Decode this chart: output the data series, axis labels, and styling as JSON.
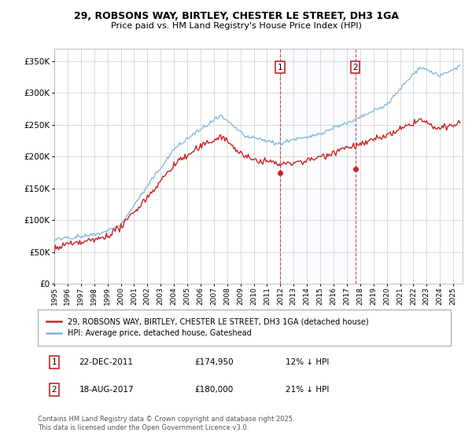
{
  "title": "29, ROBSONS WAY, BIRTLEY, CHESTER LE STREET, DH3 1GA",
  "subtitle": "Price paid vs. HM Land Registry's House Price Index (HPI)",
  "legend_property": "29, ROBSONS WAY, BIRTLEY, CHESTER LE STREET, DH3 1GA (detached house)",
  "legend_hpi": "HPI: Average price, detached house, Gateshead",
  "annotation1_date": "22-DEC-2011",
  "annotation1_price": "£174,950",
  "annotation1_hpi": "12% ↓ HPI",
  "annotation2_date": "18-AUG-2017",
  "annotation2_price": "£180,000",
  "annotation2_hpi": "21% ↓ HPI",
  "footer": "Contains HM Land Registry data © Crown copyright and database right 2025.\nThis data is licensed under the Open Government Licence v3.0.",
  "hpi_color": "#7ab4d8",
  "property_color": "#cc2222",
  "annotation_box_color": "#cc2222",
  "background_color": "#ffffff",
  "grid_color": "#cccccc",
  "shade_color": "#ddeeff",
  "yticks": [
    0,
    50000,
    100000,
    150000,
    200000,
    250000,
    300000,
    350000
  ],
  "ylim_max": 370000,
  "sale1_year": 2011.97,
  "sale1_price": 174950,
  "sale2_year": 2017.63,
  "sale2_price": 180000
}
